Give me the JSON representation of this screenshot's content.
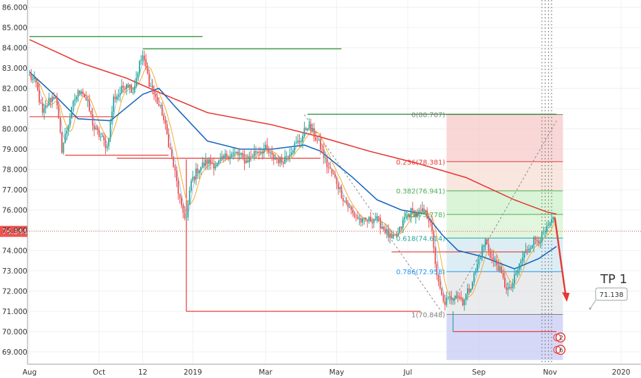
{
  "chart_data": {
    "type": "candlestick",
    "y_axis": {
      "range": [
        68.6,
        86.3
      ],
      "ticks": [
        "86.000",
        "85.000",
        "84.000",
        "83.000",
        "82.000",
        "81.000",
        "80.000",
        "79.000",
        "78.000",
        "77.000",
        "76.000",
        "75.000",
        "74.000",
        "73.000",
        "72.000",
        "71.000",
        "70.000",
        "69.000"
      ],
      "position": "left"
    },
    "x_axis": {
      "ticks": [
        {
          "label": "Aug",
          "i": 0
        },
        {
          "label": "Oct",
          "i": 43
        },
        {
          "label": "12",
          "i": 70
        },
        {
          "label": "2019",
          "i": 101
        },
        {
          "label": "Mar",
          "i": 146
        },
        {
          "label": "May",
          "i": 190
        },
        {
          "label": "Jul",
          "i": 234
        },
        {
          "label": "Sep",
          "i": 278
        },
        {
          "label": "Nov",
          "i": 322
        },
        {
          "label": "2020",
          "i": 366
        }
      ]
    },
    "current_price": {
      "label": "74.944",
      "value": 74.944
    },
    "anchors": [
      [
        0,
        82.6
      ],
      [
        4,
        82.2
      ],
      [
        8,
        80.7
      ],
      [
        12,
        81.4
      ],
      [
        16,
        81.7
      ],
      [
        20,
        79.0
      ],
      [
        24,
        80.3
      ],
      [
        28,
        81.5
      ],
      [
        32,
        82.0
      ],
      [
        36,
        81.2
      ],
      [
        40,
        80.0
      ],
      [
        44,
        79.6
      ],
      [
        48,
        79.1
      ],
      [
        52,
        81.5
      ],
      [
        56,
        81.8
      ],
      [
        60,
        82.3
      ],
      [
        64,
        81.9
      ],
      [
        68,
        83.2
      ],
      [
        70,
        83.6
      ],
      [
        74,
        82.3
      ],
      [
        78,
        81.5
      ],
      [
        82,
        80.8
      ],
      [
        86,
        79.3
      ],
      [
        90,
        77.8
      ],
      [
        94,
        76.0
      ],
      [
        97,
        75.6
      ],
      [
        100,
        77.4
      ],
      [
        104,
        78.0
      ],
      [
        110,
        78.4
      ],
      [
        116,
        78.2
      ],
      [
        122,
        78.7
      ],
      [
        128,
        78.8
      ],
      [
        134,
        78.4
      ],
      [
        140,
        78.9
      ],
      [
        146,
        79.0
      ],
      [
        150,
        78.6
      ],
      [
        156,
        78.4
      ],
      [
        162,
        79.0
      ],
      [
        168,
        79.5
      ],
      [
        172,
        80.2
      ],
      [
        176,
        79.7
      ],
      [
        180,
        79.1
      ],
      [
        184,
        78.2
      ],
      [
        190,
        77.4
      ],
      [
        194,
        76.6
      ],
      [
        200,
        75.8
      ],
      [
        206,
        75.4
      ],
      [
        214,
        75.6
      ],
      [
        220,
        75.0
      ],
      [
        224,
        74.5
      ],
      [
        228,
        74.8
      ],
      [
        232,
        75.6
      ],
      [
        236,
        75.9
      ],
      [
        240,
        75.8
      ],
      [
        244,
        75.9
      ],
      [
        248,
        75.5
      ],
      [
        250,
        74.0
      ],
      [
        253,
        72.3
      ],
      [
        256,
        71.4
      ],
      [
        260,
        71.6
      ],
      [
        264,
        71.9
      ],
      [
        268,
        71.5
      ],
      [
        272,
        72.1
      ],
      [
        276,
        73.0
      ],
      [
        280,
        74.1
      ],
      [
        282,
        74.5
      ],
      [
        286,
        73.6
      ],
      [
        290,
        73.2
      ],
      [
        294,
        72.3
      ],
      [
        297,
        72.0
      ],
      [
        300,
        72.6
      ],
      [
        304,
        73.5
      ],
      [
        308,
        74.1
      ],
      [
        312,
        74.5
      ],
      [
        316,
        74.6
      ],
      [
        320,
        75.0
      ],
      [
        323,
        75.4
      ],
      [
        325,
        75.5
      ]
    ],
    "ma200": [
      [
        0,
        84.4
      ],
      [
        30,
        83.3
      ],
      [
        60,
        82.5
      ],
      [
        80,
        81.8
      ],
      [
        110,
        80.8
      ],
      [
        150,
        80.2
      ],
      [
        180,
        79.6
      ],
      [
        210,
        78.9
      ],
      [
        240,
        78.3
      ],
      [
        270,
        77.6
      ],
      [
        300,
        76.5
      ],
      [
        320,
        75.9
      ],
      [
        326,
        75.8
      ]
    ],
    "ma50": [
      [
        0,
        82.8
      ],
      [
        15,
        81.7
      ],
      [
        30,
        80.5
      ],
      [
        50,
        80.4
      ],
      [
        70,
        81.7
      ],
      [
        80,
        82.0
      ],
      [
        90,
        81.1
      ],
      [
        110,
        79.4
      ],
      [
        130,
        79.0
      ],
      [
        150,
        79.0
      ],
      [
        170,
        79.2
      ],
      [
        180,
        78.9
      ],
      [
        200,
        77.6
      ],
      [
        215,
        76.5
      ],
      [
        230,
        76.0
      ],
      [
        245,
        75.8
      ],
      [
        255,
        74.8
      ],
      [
        265,
        74.0
      ],
      [
        280,
        73.7
      ],
      [
        300,
        73.1
      ],
      [
        315,
        73.6
      ],
      [
        326,
        74.2
      ]
    ],
    "fibonacci": {
      "levels": [
        {
          "label": "0(80.707)",
          "value": 80.707
        },
        {
          "label": "0.236(78.381)",
          "value": 78.381
        },
        {
          "label": "0.382(76.941)",
          "value": 76.941
        },
        {
          "label": "0.5(75.778)",
          "value": 75.778
        },
        {
          "label": "0.618(74.614)",
          "value": 74.614
        },
        {
          "label": "0.786(72.958)",
          "value": 72.958
        },
        {
          "label": "1(70.848)",
          "value": 70.848
        }
      ],
      "zones_to": 68.6
    },
    "support_resistance": [
      {
        "y": 84.55,
        "from": 0,
        "to": 107,
        "color": "#1b8a2a"
      },
      {
        "y": 83.95,
        "from": 70,
        "to": 193,
        "color": "#1b8a2a"
      },
      {
        "y": 80.72,
        "from": 172,
        "to": 326,
        "color": "#1b8a2a"
      },
      {
        "y": 78.7,
        "from": 22,
        "to": 86,
        "color": "#e53935"
      },
      {
        "y": 78.55,
        "from": 54,
        "to": 180,
        "color": "#e53935"
      },
      {
        "y": 80.6,
        "from": 0,
        "to": 52,
        "color": "#e53935"
      },
      {
        "y": 71.0,
        "from": 97,
        "to": 242,
        "color": "#e53935"
      },
      {
        "y": 73.93,
        "from": 224,
        "to": 310,
        "color": "#e53935"
      },
      {
        "y": 70.0,
        "from": 262,
        "to": 326,
        "color": "#e53935"
      }
    ],
    "projection": {
      "from": [
        325,
        75.6
      ],
      "to": [
        332,
        71.6
      ]
    },
    "target": {
      "title": "TP 1",
      "value_label": "71.138",
      "value": 71.138
    },
    "event_badges": [
      "2",
      "6"
    ]
  }
}
